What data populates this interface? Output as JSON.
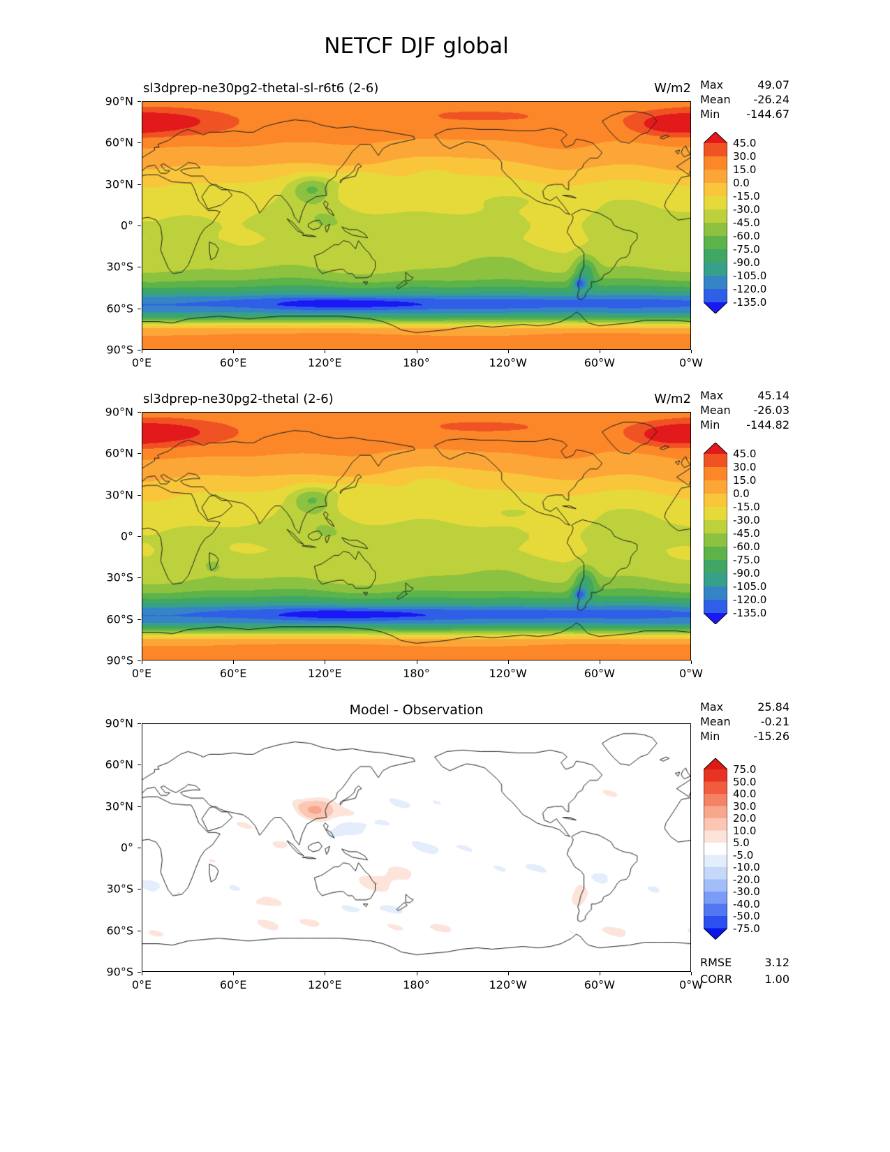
{
  "figure": {
    "title": "NETCF DJF global"
  },
  "axes": {
    "x_ticks": [
      "0°E",
      "60°E",
      "120°E",
      "180°",
      "120°W",
      "60°W",
      "0°W"
    ],
    "y_ticks": [
      "90°N",
      "60°N",
      "30°N",
      "0°",
      "30°S",
      "60°S",
      "90°S"
    ]
  },
  "panels": [
    {
      "title": "sl3dprep-ne30pg2-thetal-sl-r6t6 (2-6)",
      "title_align": "left",
      "units": "W/m2",
      "field": "model",
      "stats": [
        {
          "label": "Max",
          "value": "49.07"
        },
        {
          "label": "Mean",
          "value": "-26.24"
        },
        {
          "label": "Min",
          "value": "-144.67"
        }
      ],
      "colorbar": {
        "ticks": [
          "45.0",
          "30.0",
          "15.0",
          "0.0",
          "-15.0",
          "-30.0",
          "-45.0",
          "-60.0",
          "-75.0",
          "-90.0",
          "-105.0",
          "-120.0",
          "-135.0"
        ],
        "colors_top_to_bottom": [
          "#e31a1c",
          "#f05323",
          "#fb8728",
          "#fca637",
          "#f9c63b",
          "#e6da3b",
          "#bcd13b",
          "#8cc23f",
          "#5cb34a",
          "#3fa763",
          "#37a08b",
          "#3585c6",
          "#2f5fe6",
          "#1a18f5"
        ],
        "extend": "both"
      }
    },
    {
      "title": "sl3dprep-ne30pg2-thetal (2-6)",
      "title_align": "left",
      "units": "W/m2",
      "field": "model",
      "stats": [
        {
          "label": "Max",
          "value": "45.14"
        },
        {
          "label": "Mean",
          "value": "-26.03"
        },
        {
          "label": "Min",
          "value": "-144.82"
        }
      ],
      "colorbar": {
        "ticks": [
          "45.0",
          "30.0",
          "15.0",
          "0.0",
          "-15.0",
          "-30.0",
          "-45.0",
          "-60.0",
          "-75.0",
          "-90.0",
          "-105.0",
          "-120.0",
          "-135.0"
        ],
        "colors_top_to_bottom": [
          "#e31a1c",
          "#f05323",
          "#fb8728",
          "#fca637",
          "#f9c63b",
          "#e6da3b",
          "#bcd13b",
          "#8cc23f",
          "#5cb34a",
          "#3fa763",
          "#37a08b",
          "#3585c6",
          "#2f5fe6",
          "#1a18f5"
        ],
        "extend": "both"
      }
    },
    {
      "title": "Model - Observation",
      "title_align": "center",
      "units": "",
      "field": "diff",
      "stats": [
        {
          "label": "Max",
          "value": "25.84"
        },
        {
          "label": "Mean",
          "value": "-0.21"
        },
        {
          "label": "Min",
          "value": "-15.26"
        }
      ],
      "colorbar": {
        "ticks": [
          "75.0",
          "50.0",
          "40.0",
          "30.0",
          "20.0",
          "10.0",
          "5.0",
          "-5.0",
          "-10.0",
          "-20.0",
          "-30.0",
          "-40.0",
          "-50.0",
          "-75.0"
        ],
        "colors_top_to_bottom": [
          "#dc1a16",
          "#e93322",
          "#f15b3f",
          "#f58264",
          "#f8a68c",
          "#fbc6b4",
          "#fde4da",
          "#ffffff",
          "#e4edfc",
          "#c6d8fa",
          "#a2bef8",
          "#7a9bf6",
          "#5377f3",
          "#2c4ff0",
          "#0a16e8"
        ],
        "extend": "both"
      },
      "extra_stats": [
        {
          "label": "RMSE",
          "value": "3.12"
        },
        {
          "label": "CORR",
          "value": "1.00"
        }
      ]
    }
  ],
  "chart_data": [
    {
      "type": "heatmap",
      "name": "model_a_netcf",
      "title": "sl3dprep-ne30pg2-thetal-sl-r6t6 (2-6)",
      "units": "W/m2",
      "domain": {
        "lon": [
          0,
          360
        ],
        "lat": [
          -90,
          90
        ]
      },
      "x_tick_labels": [
        "0°E",
        "60°E",
        "120°E",
        "180°",
        "120°W",
        "60°W",
        "0°W"
      ],
      "y_tick_labels": [
        "90°N",
        "60°N",
        "30°N",
        "0°",
        "30°S",
        "60°S",
        "90°S"
      ],
      "contour_levels": [
        -135,
        -120,
        -105,
        -90,
        -75,
        -60,
        -45,
        -30,
        -15,
        0,
        15,
        30,
        45
      ],
      "stats": {
        "max": 49.07,
        "mean": -26.24,
        "min": -144.67
      },
      "zonal_mean_estimate": {
        "lat": [
          90,
          80,
          70,
          60,
          50,
          40,
          30,
          15,
          0,
          -15,
          -30,
          -40,
          -50,
          -57,
          -65,
          -72,
          -80,
          -90
        ],
        "value": [
          20,
          23,
          19,
          14,
          7,
          -6,
          -16,
          -27,
          -32,
          -32,
          -42,
          -60,
          -98,
          -122,
          -100,
          -25,
          18,
          17
        ]
      },
      "notable_features": [
        "red maxima above 45 W/m2 over high-latitude North Atlantic / Scandinavia and Arctic sector near 330E",
        "green minima -50 to -90 W/m2 over East China, Maritime Continent and subtropical South America",
        "deep blue circumpolar minimum band -105 to -145 W/m2 near 50S-62S",
        "orange band 15-30 W/m2 over the Antarctic interior"
      ]
    },
    {
      "type": "heatmap",
      "name": "model_b_netcf",
      "title": "sl3dprep-ne30pg2-thetal (2-6)",
      "units": "W/m2",
      "domain": {
        "lon": [
          0,
          360
        ],
        "lat": [
          -90,
          90
        ]
      },
      "contour_levels": [
        -135,
        -120,
        -105,
        -90,
        -75,
        -60,
        -45,
        -30,
        -15,
        0,
        15,
        30,
        45
      ],
      "stats": {
        "max": 45.14,
        "mean": -26.03,
        "min": -144.82
      },
      "note": "spatial pattern nearly identical to model_a_netcf"
    },
    {
      "type": "heatmap",
      "name": "model_minus_observation",
      "title": "Model - Observation",
      "domain": {
        "lon": [
          0,
          360
        ],
        "lat": [
          -90,
          90
        ]
      },
      "contour_levels": [
        -75,
        -50,
        -40,
        -30,
        -20,
        -10,
        -5,
        5,
        10,
        20,
        30,
        40,
        50,
        75
      ],
      "stats": {
        "max": 25.84,
        "mean": -0.21,
        "min": -15.26,
        "rmse": 3.12,
        "corr": 1.0
      },
      "notable_features": [
        "field mostly within ±5 W/m2 (white)",
        "red positive anomaly up to ~+25 W/m2 over southeast China",
        "scattered faint ±5-15 W/m2 patches over tropical western Pacific, Australia, South America and the Southern Ocean"
      ]
    }
  ]
}
